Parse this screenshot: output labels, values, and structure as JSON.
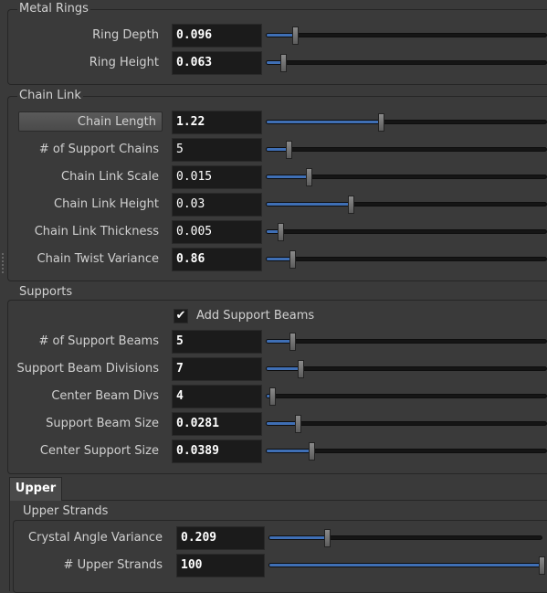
{
  "metal_rings": {
    "title": "Metal Rings",
    "params": [
      {
        "label": "Ring Depth",
        "value": "0.096",
        "fraction": 0.1
      },
      {
        "label": "Ring Height",
        "value": "0.063",
        "fraction": 0.06
      }
    ]
  },
  "chain_link": {
    "title": "Chain Link",
    "params": [
      {
        "label": "Chain Length",
        "value": "1.22",
        "fraction": 0.41
      },
      {
        "label": "# of Support Chains",
        "value": "5",
        "fraction": 0.08
      },
      {
        "label": "Chain Link Scale",
        "value": "0.015",
        "fraction": 0.15
      },
      {
        "label": "Chain Link Height",
        "value": "0.03",
        "fraction": 0.3
      },
      {
        "label": "Chain Link Thickness",
        "value": "0.005",
        "fraction": 0.05
      },
      {
        "label": "Chain Twist Variance",
        "value": "0.86",
        "fraction": 0.09
      }
    ]
  },
  "supports": {
    "title": "Supports",
    "checkbox_label": "Add Support Beams",
    "checked": true,
    "params": [
      {
        "label": "# of Support Beams",
        "value": "5",
        "fraction": 0.09
      },
      {
        "label": "Support Beam Divisions",
        "value": "7",
        "fraction": 0.12
      },
      {
        "label": "Center Beam Divs",
        "value": "4",
        "fraction": 0.02
      },
      {
        "label": "Support Beam Size",
        "value": "0.0281",
        "fraction": 0.11
      },
      {
        "label": "Center Support Size",
        "value": "0.0389",
        "fraction": 0.16
      }
    ]
  },
  "tab": {
    "label": "Upper"
  },
  "upper_strands": {
    "title": "Upper Strands",
    "params": [
      {
        "label": "Crystal Angle Variance",
        "value": "0.209",
        "fraction": 0.21
      },
      {
        "label": "# Upper Strands",
        "value": "100",
        "fraction": 1.0
      }
    ]
  },
  "colors": {
    "fill": "#3f6fb5",
    "field_bg": "#1b1b1b",
    "panel_bg": "#3a3a3a"
  }
}
